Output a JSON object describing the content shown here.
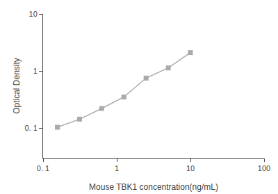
{
  "chart_data": {
    "type": "line",
    "x": [
      0.156,
      0.313,
      0.625,
      1.25,
      2.5,
      5.0,
      10.0
    ],
    "values": [
      0.103,
      0.143,
      0.22,
      0.35,
      0.75,
      1.13,
      2.1
    ],
    "xlabel": "Mouse TBK1 concentration(ng/mL)",
    "ylabel": "Optical Density",
    "xlim": [
      0.1,
      100
    ],
    "ylim": [
      0.03,
      10
    ],
    "xticks": [
      {
        "value": 0.1,
        "label": "0. 1"
      },
      1,
      10,
      100
    ],
    "yticks": [
      {
        "value": 0.1,
        "label": "0. 1"
      },
      1,
      10
    ],
    "log": true,
    "grid": false,
    "color": "#aaaaaa",
    "marker": "square"
  }
}
